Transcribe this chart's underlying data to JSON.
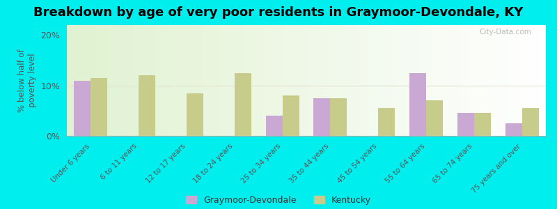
{
  "title": "Breakdown by age of very poor residents in Graymoor-Devondale, KY",
  "categories": [
    "Under 6 years",
    "6 to 11 years",
    "12 to 17 years",
    "18 to 24 years",
    "25 to 34 years",
    "35 to 44 years",
    "45 to 54 years",
    "55 to 64 years",
    "65 to 74 years",
    "75 years and over"
  ],
  "graymoor_values": [
    11.0,
    0.0,
    0.0,
    0.0,
    4.0,
    7.5,
    0.0,
    12.5,
    4.5,
    2.5
  ],
  "kentucky_values": [
    11.5,
    12.0,
    8.5,
    12.5,
    8.0,
    7.5,
    5.5,
    7.0,
    4.5,
    5.5
  ],
  "graymoor_color": "#c9a8d4",
  "kentucky_color": "#c8cc8a",
  "ylabel": "% below half of\npoverty level",
  "ylim": [
    0,
    22
  ],
  "yticks": [
    0,
    10,
    20
  ],
  "ytick_labels": [
    "0%",
    "10%",
    "20%"
  ],
  "outer_background": "#00eeee",
  "bar_width": 0.35,
  "title_fontsize": 13,
  "axis_fontsize": 9,
  "legend_labels": [
    "Graymoor-Devondale",
    "Kentucky"
  ],
  "watermark": "City-Data.com"
}
